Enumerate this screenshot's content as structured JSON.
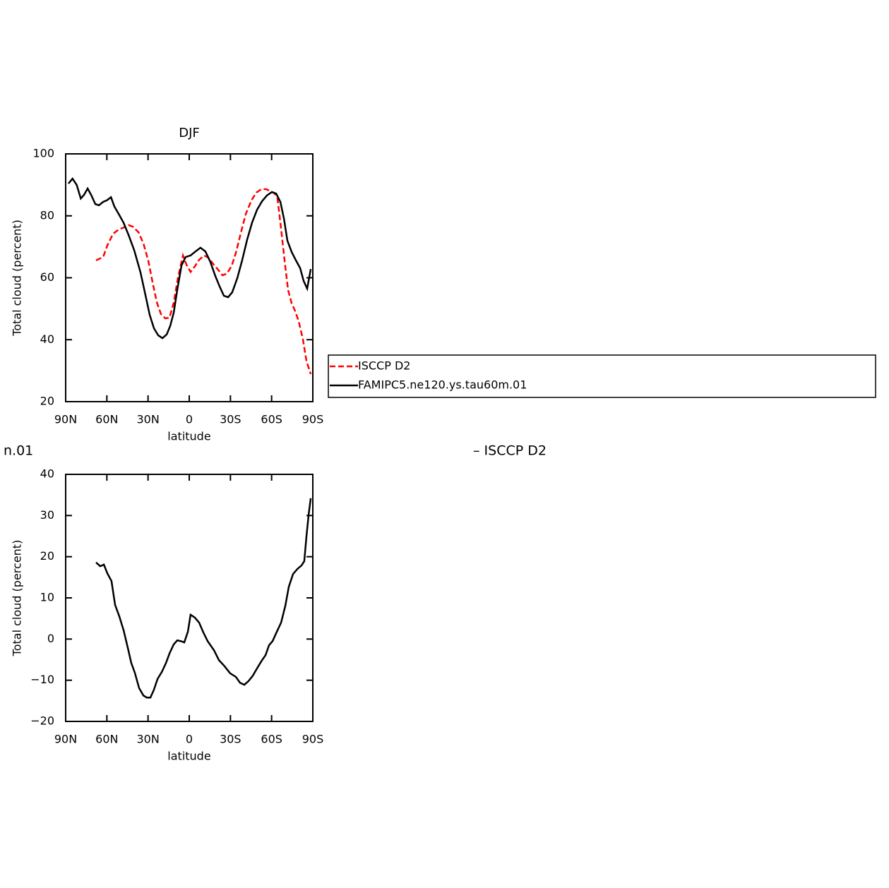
{
  "chart_data": [
    {
      "type": "line",
      "title": "DJF",
      "xlabel": "latitude",
      "ylabel": "Total cloud (percent)",
      "xlim": [
        90,
        -90
      ],
      "ylim": [
        20,
        100
      ],
      "xticks": [
        {
          "value": 90,
          "label": "90N"
        },
        {
          "value": 60,
          "label": "60N"
        },
        {
          "value": 30,
          "label": "30N"
        },
        0,
        {
          "value": -30,
          "label": "30S"
        },
        {
          "value": -60,
          "label": "60S"
        },
        {
          "value": -90,
          "label": "90S"
        }
      ],
      "yticks": [
        20,
        40,
        60,
        80,
        100
      ],
      "series": [
        {
          "name": "ISCCP D2",
          "color": "#ff0000",
          "dash": true,
          "x": [
            67.9,
            62.7,
            59.7,
            55.5,
            51.4,
            47.3,
            44.2,
            41.1,
            37,
            33.4,
            29.8,
            26.7,
            23.6,
            20.6,
            17.5,
            14.4,
            11.3,
            8.2,
            4.6,
            2,
            -1,
            -4.1,
            -7.2,
            -10.8,
            -13.9,
            -17,
            -20.6,
            -24.2,
            -27.3,
            -30.9,
            -34,
            -37.6,
            -41.2,
            -45.3,
            -48.9,
            -52.5,
            -56.1,
            -59.2,
            -62.3,
            -64.3,
            -66.9,
            -69.5,
            -72,
            -74.6,
            -77.2,
            -79.8,
            -82.8,
            -85.4,
            -88.5
          ],
          "values": [
            65.6,
            66.7,
            70.4,
            74.2,
            75.6,
            76.3,
            77,
            76.5,
            74.7,
            71.1,
            65.4,
            58.5,
            52.1,
            48.3,
            46.9,
            47.1,
            51.9,
            60.1,
            67.2,
            64.2,
            61.9,
            63.7,
            65.8,
            67.2,
            66.5,
            64.7,
            62.8,
            60.8,
            61.3,
            63.8,
            68.1,
            74.5,
            80.6,
            85,
            87.5,
            88.6,
            88.6,
            87.9,
            87.2,
            85.6,
            75.8,
            65.4,
            56,
            51.7,
            49.2,
            45.8,
            40.1,
            33,
            28.9
          ]
        },
        {
          "name": "FAMIPC5.ne120.ys.tau60m.01",
          "color": "#000000",
          "dash": false,
          "x": [
            88,
            85,
            82,
            79,
            76.6,
            74,
            71.5,
            68.4,
            65.8,
            62.7,
            60,
            57,
            54.5,
            51.4,
            47.8,
            44.2,
            40,
            35.5,
            31.9,
            28.8,
            25.7,
            22.6,
            19.5,
            16.4,
            13.9,
            11.3,
            8.7,
            5.6,
            2.6,
            -1,
            -4.6,
            -8.2,
            -11.8,
            -15.4,
            -19,
            -22.1,
            -25.2,
            -28.3,
            -31.3,
            -35,
            -38.6,
            -42.2,
            -45.8,
            -49.4,
            -53,
            -56.6,
            -60.2,
            -63.3,
            -66.4,
            -69,
            -71.5,
            -74.6,
            -77.7,
            -80.8,
            -83.3,
            -85.9,
            -88.5
          ],
          "values": [
            90.4,
            92,
            90,
            85.6,
            86.8,
            88.8,
            86.8,
            83.8,
            83.4,
            84.5,
            85,
            86,
            83,
            80.6,
            77.7,
            73.8,
            68.8,
            61.7,
            54.4,
            48,
            43.7,
            41.4,
            40.5,
            41.7,
            44.4,
            48.7,
            56.2,
            64,
            66.7,
            67.2,
            68.5,
            69.7,
            68.5,
            65.1,
            60.6,
            57.2,
            54.2,
            53.7,
            55.3,
            59.9,
            65.8,
            72.4,
            77.9,
            82,
            84.7,
            86.6,
            87.7,
            87.2,
            84.5,
            79,
            72,
            68.3,
            65.6,
            63.1,
            59,
            56.5,
            62.8
          ]
        }
      ]
    },
    {
      "type": "line",
      "xlabel": "latitude",
      "ylabel": "Total cloud (percent)",
      "annotations": [
        "n.01",
        "– ISCCP D2"
      ],
      "xlim": [
        90,
        -90
      ],
      "ylim": [
        -20,
        40
      ],
      "xticks": [
        {
          "value": 90,
          "label": "90N"
        },
        {
          "value": 60,
          "label": "60N"
        },
        {
          "value": 30,
          "label": "30N"
        },
        0,
        {
          "value": -30,
          "label": "30S"
        },
        {
          "value": -60,
          "label": "60S"
        },
        {
          "value": -90,
          "label": "90S"
        }
      ],
      "yticks": [
        {
          "value": -20,
          "label": "−20"
        },
        {
          "value": -10,
          "label": "−10"
        },
        0,
        10,
        20,
        30,
        40
      ],
      "series": [
        {
          "color": "#000000",
          "dash": false,
          "x": [
            67.9,
            64.8,
            62.2,
            59.7,
            56.6,
            54,
            50.9,
            47.8,
            44.7,
            42.2,
            39.6,
            36.5,
            33.4,
            30.9,
            28.3,
            25.7,
            23.1,
            20,
            16.9,
            14.4,
            11.3,
            8.7,
            6.1,
            3.6,
            1,
            -1,
            -4.1,
            -7.2,
            -10.3,
            -13.4,
            -18,
            -21.6,
            -25.7,
            -29.8,
            -34,
            -37,
            -40.1,
            -43.2,
            -46.3,
            -49.4,
            -52.5,
            -55.6,
            -58.1,
            -60.7,
            -63.8,
            -66.9,
            -70,
            -72.5,
            -75.6,
            -78.7,
            -81.8,
            -83.8,
            -85.4,
            -87,
            -88.5
          ],
          "values": [
            18.6,
            17.7,
            18.1,
            16,
            14.1,
            8.3,
            5.5,
            2.1,
            -2.2,
            -5.8,
            -8.2,
            -11.9,
            -13.7,
            -14.2,
            -14.2,
            -12.3,
            -9.7,
            -8,
            -5.8,
            -3.5,
            -1.3,
            -0.3,
            -0.5,
            -0.8,
            1.8,
            5.9,
            5.2,
            4,
            1.6,
            -0.5,
            -2.7,
            -5.1,
            -6.6,
            -8.3,
            -9.2,
            -10.6,
            -11.1,
            -10.2,
            -8.9,
            -7.1,
            -5.4,
            -3.9,
            -1.5,
            -0.5,
            1.8,
            4,
            8.1,
            12.7,
            15.8,
            17,
            17.9,
            18.9,
            25.1,
            30.4,
            34.2
          ]
        }
      ]
    }
  ]
}
